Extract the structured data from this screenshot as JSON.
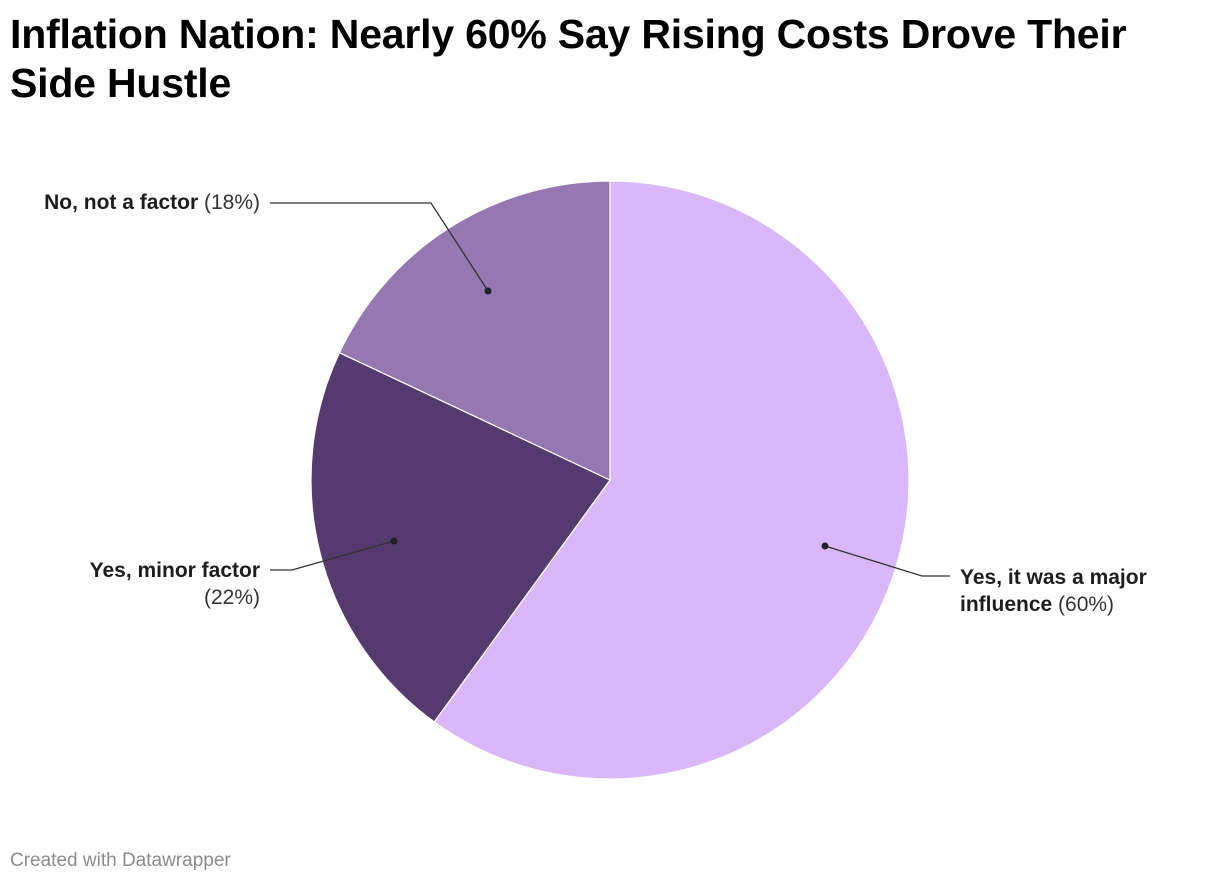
{
  "title": "Inflation Nation: Nearly 60% Say Rising Costs Drove Their Side Hustle",
  "footer": "Created with Datawrapper",
  "chart_data": {
    "type": "pie",
    "title": "Inflation Nation: Nearly 60% Say Rising Costs Drove Their Side Hustle",
    "start": "12 o'clock",
    "direction": "clockwise",
    "slices": [
      {
        "label": "Yes, it was a major influence",
        "label_line1": "Yes, it was a major",
        "label_line2": "influence",
        "value": 60,
        "pct_text": "(60%)",
        "color": "#d9b7f9"
      },
      {
        "label": "Yes, minor factor",
        "value": 22,
        "pct_text": "(22%)",
        "color": "#553a70"
      },
      {
        "label": "No, not a factor",
        "value": 18,
        "pct_text": "(18%)",
        "color": "#9577b2"
      }
    ]
  }
}
